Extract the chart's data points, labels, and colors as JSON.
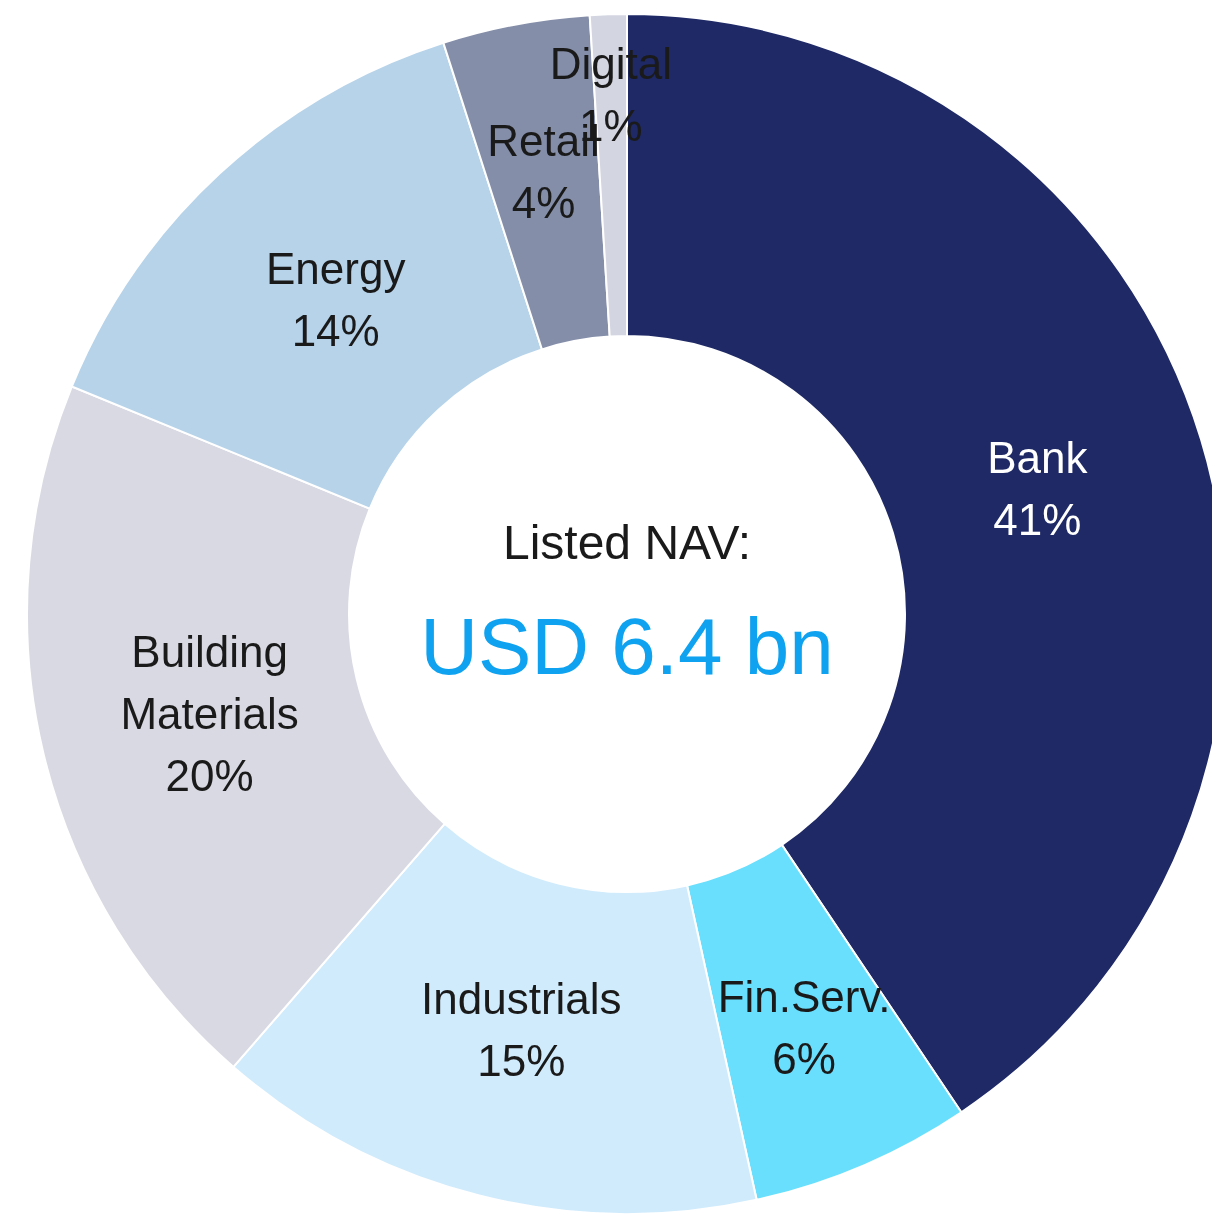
{
  "chart_data": {
    "type": "donut",
    "title": "Listed NAV:",
    "subtitle": "USD 6.4 bn",
    "categories": [
      "Bank",
      "Fin.Serv.",
      "Industrials",
      "Building Materials",
      "Energy",
      "Retail",
      "Digital"
    ],
    "values": [
      41,
      6,
      15,
      20,
      14,
      4,
      1
    ],
    "value_labels": [
      "41%",
      "6%",
      "15%",
      "20%",
      "14%",
      "4%",
      "1%"
    ],
    "colors": [
      "#1e2966",
      "#69dffd",
      "#d0ebfc",
      "#d8d9e3",
      "#b6d3ea",
      "#848ea9",
      "#d3d5e0"
    ]
  }
}
